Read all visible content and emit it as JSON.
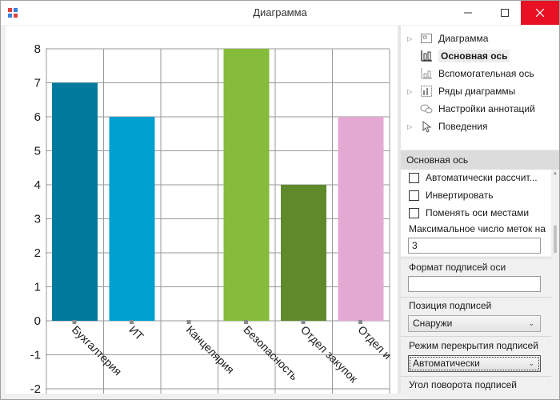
{
  "window": {
    "title": "Диаграмма",
    "controls": {
      "minimize": "minimize-icon",
      "maximize": "maximize-icon",
      "close": "close-icon"
    }
  },
  "tree": {
    "items": [
      {
        "label": "Диаграмма",
        "icon": "chart-icon",
        "expandable": true
      },
      {
        "label": "Основная ось",
        "icon": "primary-axis-icon",
        "selected": true
      },
      {
        "label": "Вспомогательная ось",
        "icon": "secondary-axis-icon"
      },
      {
        "label": "Ряды диаграммы",
        "icon": "series-icon",
        "expandable": true
      },
      {
        "label": "Настройки аннотаций",
        "icon": "annotations-icon"
      },
      {
        "label": "Поведения",
        "icon": "behavior-icon",
        "expandable": true
      }
    ]
  },
  "props": {
    "header": "Основная ось",
    "auto_calc_label": "Автоматически рассчит...",
    "invert_label": "Инвертировать",
    "swap_axes_label": "Поменять оси местами",
    "max_ticks_label": "Максимальное число меток на",
    "max_ticks_value": "3",
    "format_label": "Формат подписей оси",
    "format_value": "",
    "label_position_label": "Позиция подписей",
    "label_position_value": "Снаружи",
    "overlap_mode_label": "Режим перекрытия подписей",
    "overlap_mode_value": "Автоматически",
    "rotation_label": "Угол поворота подписей"
  },
  "colors": {
    "accent_close": "#e81123",
    "bar1": "#00799c",
    "bar2": "#00a1d0",
    "bar3": "#85bc3c",
    "bar4": "#5f8a2b",
    "bar5": "#e4a9d3"
  },
  "chart_data": {
    "type": "bar",
    "categories": [
      "Бухгалтерия",
      "ИТ",
      "Канцелярия",
      "Безопасность",
      "Отдел закупок",
      "Отдел и"
    ],
    "values": [
      7,
      6,
      0,
      8,
      4,
      6
    ],
    "colors": [
      "#00799c",
      "#00a1d0",
      "#00a1d0",
      "#85bc3c",
      "#5f8a2b",
      "#e4a9d3"
    ],
    "yticks": [
      8,
      7,
      6,
      5,
      4,
      3,
      2,
      1,
      0,
      -1,
      -2
    ],
    "ylim": [
      -2,
      8
    ],
    "grid": true
  }
}
